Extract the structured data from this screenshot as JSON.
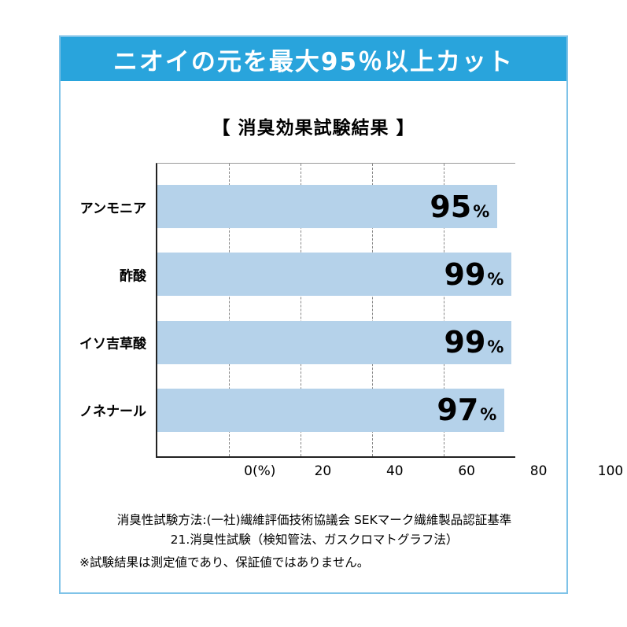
{
  "banner": {
    "title": "ニオイの元を最大95％以上カット"
  },
  "chart_data": {
    "type": "bar",
    "orientation": "horizontal",
    "title": "【 消臭効果試験結果 】",
    "categories": [
      "アンモニア",
      "酢酸",
      "イソ吉草酸",
      "ノネナール"
    ],
    "values": [
      95,
      99,
      99,
      97
    ],
    "unit": "%",
    "xlabel": "(%)",
    "xlim": [
      0,
      100
    ],
    "x_ticks": [
      {
        "label": "0(%)",
        "pos": 0
      },
      {
        "label": "20",
        "pos": 20
      },
      {
        "label": "40",
        "pos": 40
      },
      {
        "label": "60",
        "pos": 60
      },
      {
        "label": "80",
        "pos": 80
      },
      {
        "label": "100",
        "pos": 100
      }
    ],
    "gridlines": [
      20,
      40,
      60,
      80
    ],
    "grid_style": "dashed-vertical",
    "legend_position": "none"
  },
  "footer": {
    "method_line1": "消臭性試験方法:(一社)繊維評価技術協議会 SEKマーク繊維製品認証基準",
    "method_line2": "21.消臭性試験（検知管法、ガスクロマトグラフ法）",
    "note": "※試験結果は測定値であり、保証値ではありません。"
  },
  "colors": {
    "banner_bg": "#29a4dc",
    "card_border": "#7fc3e8",
    "bar_fill": "#b5d2ea",
    "axis": "#222222",
    "gridline": "#888888",
    "text": "#111111"
  }
}
